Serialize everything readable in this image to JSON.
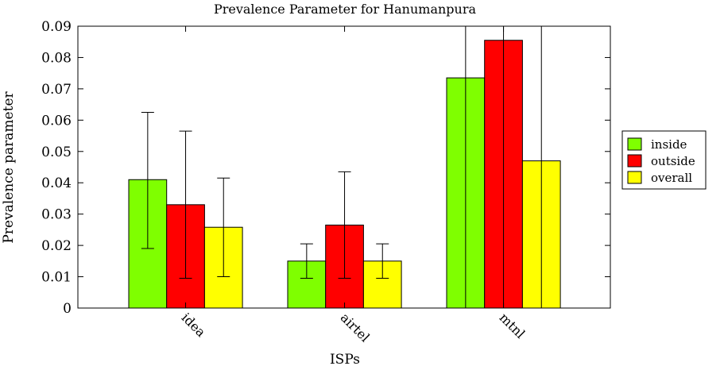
{
  "chart_data": {
    "type": "bar",
    "title": "Prevalence Parameter for Hanumanpura",
    "xlabel": "ISPs",
    "ylabel": "Prevalence parameter",
    "categories": [
      "idea",
      "airtel",
      "mtnl"
    ],
    "ylim": [
      0,
      0.09
    ],
    "yticks": [
      "0",
      "0.01",
      "0.02",
      "0.03",
      "0.04",
      "0.05",
      "0.06",
      "0.07",
      "0.08",
      "0.09"
    ],
    "series": [
      {
        "name": "inside",
        "color": "#7fff00",
        "values": [
          0.041,
          0.015,
          0.0735
        ],
        "err_low": [
          0.019,
          0.0095,
          0.0
        ],
        "err_high": [
          0.0625,
          0.0205,
          0.09
        ]
      },
      {
        "name": "outside",
        "color": "#ff0000",
        "values": [
          0.033,
          0.0265,
          0.0855
        ],
        "err_low": [
          0.0095,
          0.0095,
          0.0
        ],
        "err_high": [
          0.0565,
          0.0435,
          0.09
        ]
      },
      {
        "name": "overall",
        "color": "#ffff00",
        "values": [
          0.0258,
          0.015,
          0.047
        ],
        "err_low": [
          0.01,
          0.0095,
          0.0
        ],
        "err_high": [
          0.0415,
          0.0205,
          0.09
        ]
      }
    ],
    "legend_position": "right",
    "grid": false
  }
}
